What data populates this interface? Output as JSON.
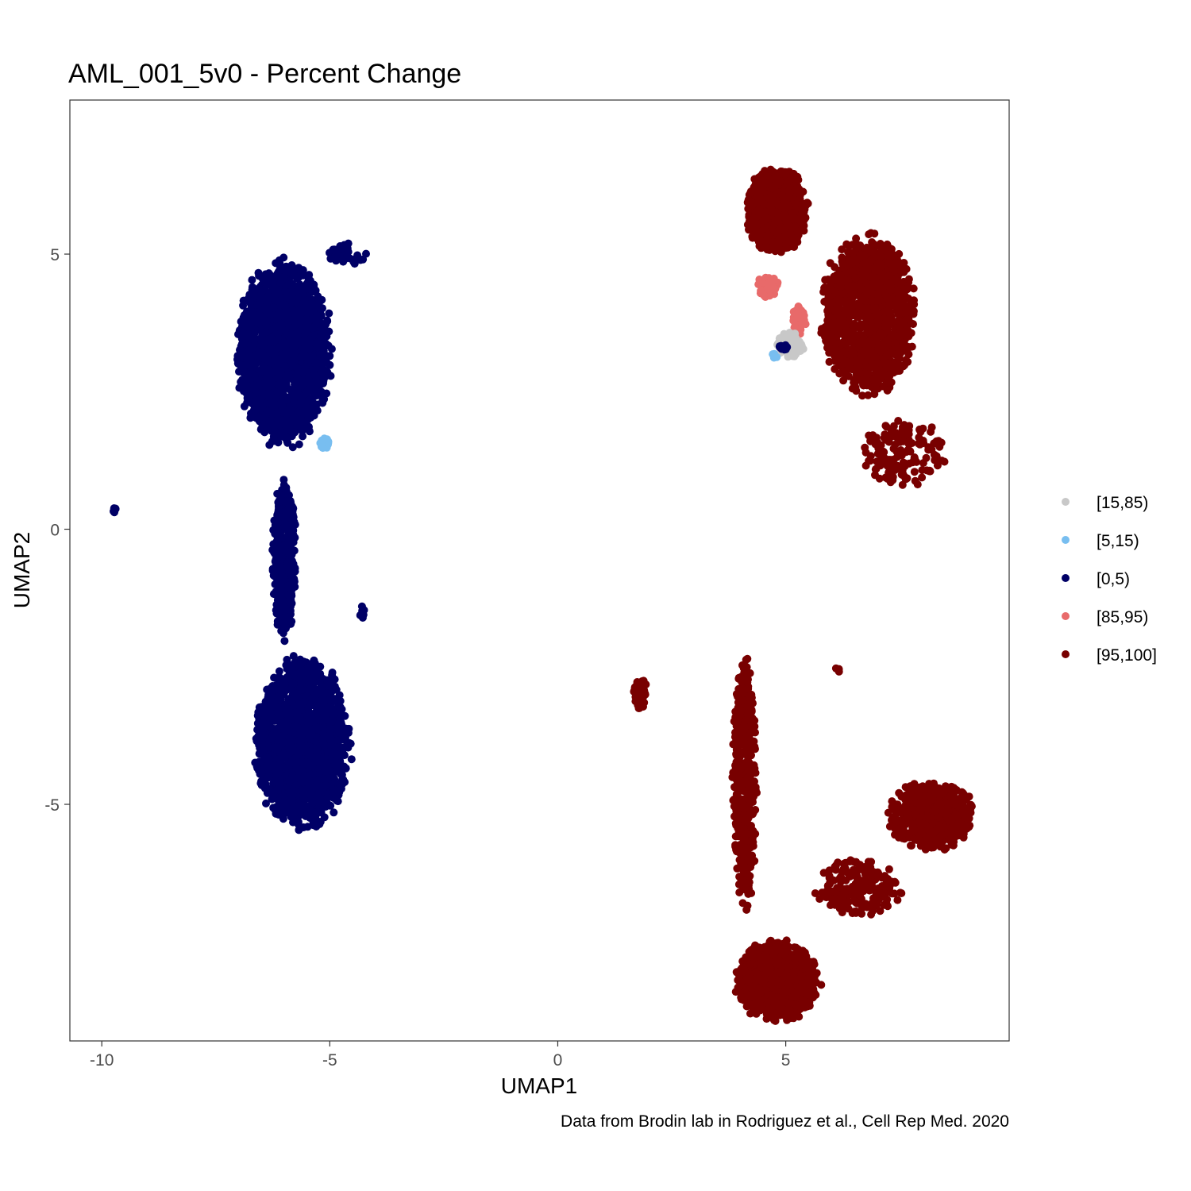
{
  "chart_data": {
    "type": "scatter",
    "title": "AML_001_5v0 - Percent Change",
    "xlabel": "UMAP1",
    "ylabel": "UMAP2",
    "caption": "Data from Brodin lab in Rodriguez et al., Cell Rep Med. 2020",
    "xlim": [
      -10.7,
      9.9
    ],
    "ylim": [
      -9.3,
      7.8
    ],
    "x_ticks": [
      {
        "value": -10,
        "label": "-10"
      },
      {
        "value": -5,
        "label": "-5"
      },
      {
        "value": 0,
        "label": "0"
      },
      {
        "value": 5,
        "label": "5"
      }
    ],
    "y_ticks": [
      {
        "value": 5,
        "label": "5"
      },
      {
        "value": 0,
        "label": "0"
      },
      {
        "value": -5,
        "label": "-5"
      }
    ],
    "grid": false,
    "legend_position": "right",
    "legend": [
      {
        "label": "[15,85)",
        "color": "#c8c8c8"
      },
      {
        "label": "[5,15)",
        "color": "#78bef0"
      },
      {
        "label": "[0,5)",
        "color": "#000066"
      },
      {
        "label": "[85,95)",
        "color": "#e86a6a"
      },
      {
        "label": "[95,100]",
        "color": "#780000"
      }
    ],
    "clusters": [
      {
        "category": "[0,5)",
        "color": "#000066",
        "x_center": -6.0,
        "y_center": 3.2,
        "x_spread": 1.0,
        "y_spread": 1.6,
        "n": 1700
      },
      {
        "category": "[0,5)",
        "color": "#000066",
        "x_center": -5.6,
        "y_center": -3.9,
        "x_spread": 1.0,
        "y_spread": 1.5,
        "n": 1500
      },
      {
        "category": "[0,5)",
        "color": "#000066",
        "x_center": -6.0,
        "y_center": -0.5,
        "x_spread": 0.25,
        "y_spread": 1.4,
        "n": 400
      },
      {
        "category": "[0,5)",
        "color": "#000066",
        "x_center": -4.6,
        "y_center": 5.0,
        "x_spread": 0.4,
        "y_spread": 0.2,
        "n": 40
      },
      {
        "category": "[0,5)",
        "color": "#000066",
        "x_center": -9.7,
        "y_center": 0.35,
        "x_spread": 0.05,
        "y_spread": 0.05,
        "n": 6
      },
      {
        "category": "[0,5)",
        "color": "#000066",
        "x_center": -4.3,
        "y_center": -1.5,
        "x_spread": 0.06,
        "y_spread": 0.12,
        "n": 8
      },
      {
        "category": "[5,15)",
        "color": "#78bef0",
        "x_center": -5.1,
        "y_center": 1.55,
        "x_spread": 0.12,
        "y_spread": 0.1,
        "n": 14
      },
      {
        "category": "[95,100]",
        "color": "#780000",
        "x_center": 4.8,
        "y_center": 5.8,
        "x_spread": 0.65,
        "y_spread": 0.75,
        "n": 900
      },
      {
        "category": "[95,100]",
        "color": "#780000",
        "x_center": 6.8,
        "y_center": 3.9,
        "x_spread": 1.0,
        "y_spread": 1.4,
        "n": 1200
      },
      {
        "category": "[95,100]",
        "color": "#780000",
        "x_center": 7.6,
        "y_center": 1.4,
        "x_spread": 0.9,
        "y_spread": 0.6,
        "n": 150
      },
      {
        "category": "[95,100]",
        "color": "#780000",
        "x_center": 4.8,
        "y_center": -8.2,
        "x_spread": 0.9,
        "y_spread": 0.7,
        "n": 900
      },
      {
        "category": "[95,100]",
        "color": "#780000",
        "x_center": 8.2,
        "y_center": -5.2,
        "x_spread": 0.9,
        "y_spread": 0.6,
        "n": 550
      },
      {
        "category": "[95,100]",
        "color": "#780000",
        "x_center": 6.6,
        "y_center": -6.5,
        "x_spread": 0.9,
        "y_spread": 0.5,
        "n": 200
      },
      {
        "category": "[95,100]",
        "color": "#780000",
        "x_center": 4.1,
        "y_center": -4.6,
        "x_spread": 0.25,
        "y_spread": 2.2,
        "n": 450
      },
      {
        "category": "[95,100]",
        "color": "#780000",
        "x_center": 1.8,
        "y_center": -3.0,
        "x_spread": 0.15,
        "y_spread": 0.3,
        "n": 40
      },
      {
        "category": "[95,100]",
        "color": "#780000",
        "x_center": 6.15,
        "y_center": -2.55,
        "x_spread": 0.05,
        "y_spread": 0.05,
        "n": 5
      },
      {
        "category": "[85,95)",
        "color": "#e86a6a",
        "x_center": 4.6,
        "y_center": 4.4,
        "x_spread": 0.25,
        "y_spread": 0.2,
        "n": 35
      },
      {
        "category": "[85,95)",
        "color": "#e86a6a",
        "x_center": 5.3,
        "y_center": 3.8,
        "x_spread": 0.15,
        "y_spread": 0.25,
        "n": 35
      },
      {
        "category": "[15,85)",
        "color": "#c8c8c8",
        "x_center": 5.1,
        "y_center": 3.35,
        "x_spread": 0.3,
        "y_spread": 0.25,
        "n": 60
      },
      {
        "category": "[0,5)",
        "color": "#000066",
        "x_center": 4.95,
        "y_center": 3.3,
        "x_spread": 0.12,
        "y_spread": 0.06,
        "n": 14
      },
      {
        "category": "[5,15)",
        "color": "#78bef0",
        "x_center": 4.75,
        "y_center": 3.15,
        "x_spread": 0.06,
        "y_spread": 0.05,
        "n": 6
      }
    ]
  }
}
